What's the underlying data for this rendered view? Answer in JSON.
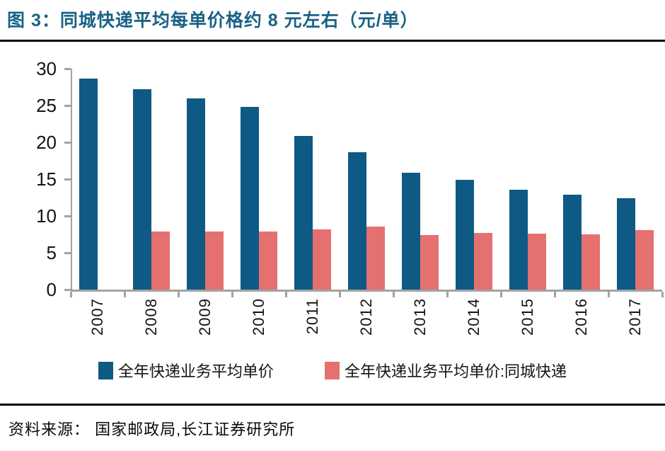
{
  "header": {
    "title": "图 3：同城快递平均每单价格约 8 元左右（元/单）",
    "title_color": "#1a6286"
  },
  "footer": {
    "source": "资料来源： 国家邮政局,长江证券研究所"
  },
  "chart_data": {
    "type": "bar",
    "title": "同城快递平均每单价格约 8 元左右（元/单）",
    "categories": [
      "2007",
      "2008",
      "2009",
      "2010",
      "2011",
      "2012",
      "2013",
      "2014",
      "2015",
      "2016",
      "2017"
    ],
    "series": [
      {
        "name": "全年快递业务平均单价",
        "color": "#0e5a84",
        "values": [
          28.7,
          27.2,
          26.0,
          24.8,
          20.9,
          18.7,
          15.9,
          14.9,
          13.6,
          12.9,
          12.4
        ]
      },
      {
        "name": "全年快递业务平均单价:同城快递",
        "color": "#e57070",
        "values": [
          null,
          7.9,
          7.9,
          7.9,
          8.2,
          8.6,
          7.4,
          7.7,
          7.6,
          7.5,
          8.1
        ]
      }
    ],
    "xlabel": "",
    "ylabel": "",
    "ylim": [
      0,
      30
    ],
    "yticks": [
      0,
      5,
      10,
      15,
      20,
      25,
      30
    ],
    "grid": false,
    "legend_position": "bottom",
    "axis_color": "#a3a3a3",
    "x_tick_rotation": 90
  }
}
